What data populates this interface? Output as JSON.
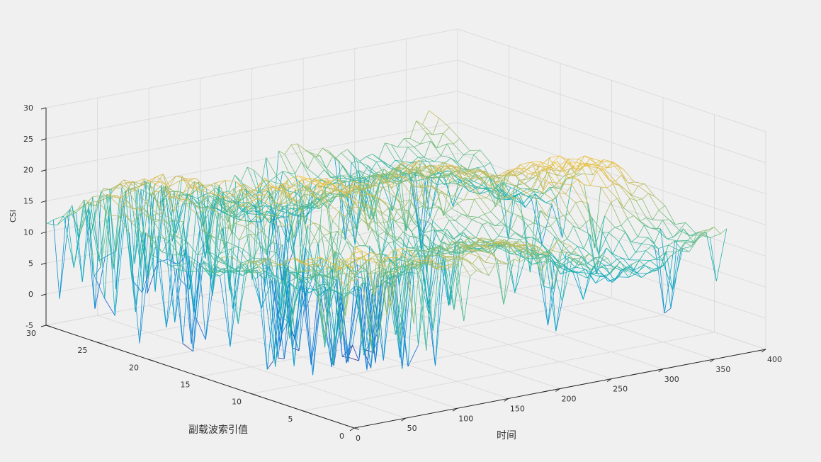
{
  "chart_data": {
    "type": "surface",
    "title": "",
    "xlabel": "时间",
    "ylabel": "副载波索引值",
    "zlabel": "CSI",
    "xlim": [
      0,
      400
    ],
    "ylim": [
      0,
      30
    ],
    "zlim": [
      -5,
      30
    ],
    "x_ticks": [
      0,
      50,
      100,
      150,
      200,
      250,
      300,
      350,
      400
    ],
    "y_ticks": [
      0,
      5,
      10,
      15,
      20,
      25,
      30
    ],
    "z_ticks": [
      -5,
      0,
      5,
      10,
      15,
      20,
      25,
      30
    ],
    "x_tick_labels": [
      "0",
      "50",
      "100",
      "150",
      "200",
      "250",
      "300",
      "350",
      "400"
    ],
    "y_tick_labels": [
      "0",
      "5",
      "10",
      "15",
      "20",
      "25",
      "30"
    ],
    "z_tick_labels": [
      "-5",
      "0",
      "5",
      "10",
      "15",
      "20",
      "25",
      "30"
    ],
    "grid": true,
    "colormap": "parula",
    "colormap_stops": [
      "#352a87",
      "#0f5cdd",
      "#1481d6",
      "#06a4ca",
      "#2eb7a4",
      "#87bf77",
      "#d1bb59",
      "#fec832",
      "#f9fb0e"
    ],
    "mesh_x_range": [
      1,
      372
    ],
    "mesh_y_range": [
      1,
      30
    ],
    "mesh_value_range": [
      -3,
      25
    ]
  }
}
